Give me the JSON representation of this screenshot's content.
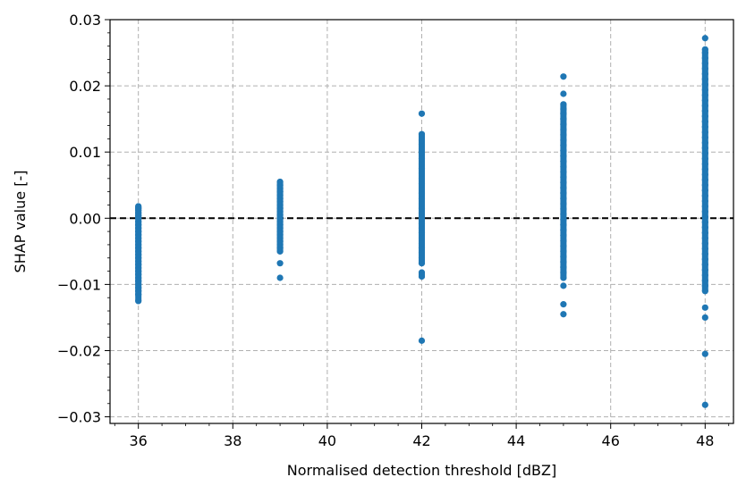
{
  "chart_data": {
    "type": "scatter",
    "xlabel": "Normalised detection threshold [dBZ]",
    "ylabel": "SHAP value [-]",
    "xlim": [
      35.4,
      48.6
    ],
    "ylim": [
      -0.031,
      0.03
    ],
    "x_ticks": [
      36,
      38,
      40,
      42,
      44,
      46,
      48
    ],
    "x_tick_labels": [
      "36",
      "38",
      "40",
      "42",
      "44",
      "46",
      "48"
    ],
    "y_ticks": [
      -0.03,
      -0.02,
      -0.01,
      0.0,
      0.01,
      0.02,
      0.03
    ],
    "y_tick_labels": [
      "−0.03",
      "−0.02",
      "−0.01",
      "0.00",
      "0.01",
      "0.02",
      "0.03"
    ],
    "grid": true,
    "reference_line_y": 0.0,
    "point_color": "#1f77b4",
    "reference_line_color": "#000000",
    "series": [
      {
        "x": 36,
        "values": [
          0.0018,
          0.0015,
          0.0012,
          0.0008,
          0.0004,
          0.0,
          -0.0005,
          -0.001,
          -0.0015,
          -0.002,
          -0.0025,
          -0.003,
          -0.0035,
          -0.004,
          -0.0045,
          -0.005,
          -0.0055,
          -0.006,
          -0.0065,
          -0.007,
          -0.0075,
          -0.008,
          -0.0085,
          -0.009,
          -0.0095,
          -0.01,
          -0.0105,
          -0.011,
          -0.0115,
          -0.0125
        ]
      },
      {
        "x": 39,
        "values": [
          0.0055,
          0.005,
          0.0045,
          0.004,
          0.0035,
          0.003,
          0.0025,
          0.002,
          0.0015,
          0.001,
          0.0005,
          0.0,
          -0.0005,
          -0.001,
          -0.0015,
          -0.002,
          -0.0025,
          -0.003,
          -0.0035,
          -0.004,
          -0.0045,
          -0.005,
          -0.0068,
          -0.009
        ]
      },
      {
        "x": 42,
        "values": [
          0.0158,
          0.0127,
          0.0118,
          0.0112,
          0.0105,
          0.0098,
          0.009,
          0.0082,
          0.0075,
          0.0068,
          0.006,
          0.0052,
          0.0045,
          0.0038,
          0.003,
          0.0022,
          0.0015,
          0.0008,
          0.0,
          -0.0008,
          -0.0015,
          -0.0022,
          -0.003,
          -0.0038,
          -0.0045,
          -0.0052,
          -0.006,
          -0.0068,
          -0.0082,
          -0.0088,
          -0.0185
        ]
      },
      {
        "x": 45,
        "values": [
          0.0214,
          0.0188,
          0.0172,
          0.0165,
          0.0158,
          0.015,
          0.0142,
          0.0134,
          0.0126,
          0.0118,
          0.011,
          0.0102,
          0.0094,
          0.0086,
          0.0078,
          0.007,
          0.0062,
          0.0054,
          0.0046,
          0.0038,
          0.003,
          0.0022,
          0.0014,
          0.0006,
          -0.0002,
          -0.001,
          -0.0018,
          -0.0026,
          -0.0034,
          -0.0042,
          -0.005,
          -0.0058,
          -0.0066,
          -0.0074,
          -0.0082,
          -0.009,
          -0.0102,
          -0.013,
          -0.0145
        ]
      },
      {
        "x": 48,
        "values": [
          0.0272,
          0.0255,
          0.025,
          0.0242,
          0.0234,
          0.0226,
          0.0218,
          0.021,
          0.0202,
          0.0194,
          0.0186,
          0.0178,
          0.017,
          0.0162,
          0.0154,
          0.0146,
          0.0138,
          0.013,
          0.0122,
          0.0114,
          0.0106,
          0.0098,
          0.009,
          0.0082,
          0.0074,
          0.0066,
          0.0058,
          0.005,
          0.0042,
          0.0034,
          0.0026,
          0.0018,
          0.001,
          0.0002,
          -0.0006,
          -0.0014,
          -0.0022,
          -0.003,
          -0.0038,
          -0.0046,
          -0.0054,
          -0.0062,
          -0.007,
          -0.0078,
          -0.0086,
          -0.0094,
          -0.0102,
          -0.011,
          -0.0135,
          -0.015,
          -0.0205,
          -0.0282
        ]
      }
    ]
  }
}
